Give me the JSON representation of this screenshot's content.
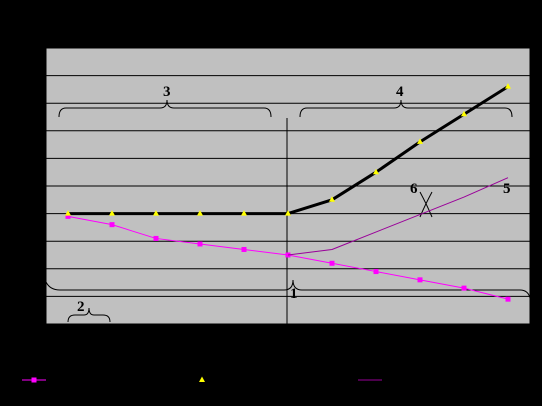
{
  "chart_data": {
    "type": "line",
    "title": "",
    "xlabel": "",
    "ylabel": "",
    "x": [
      1,
      2,
      3,
      4,
      5,
      6,
      7,
      8,
      9,
      10,
      11
    ],
    "xlim": [
      0.5,
      11.5
    ],
    "ylim": [
      0,
      10
    ],
    "grid": true,
    "legend_position": "bottom",
    "series": [
      {
        "key": "magenta-squares",
        "color": "#ff00ff",
        "marker": "square",
        "line_width": 1,
        "values": [
          3.9,
          3.6,
          3.1,
          2.9,
          2.7,
          2.5,
          2.2,
          1.9,
          1.6,
          1.3,
          0.9
        ]
      },
      {
        "key": "black-triangles",
        "color": "#000000",
        "marker_color": "#ffff00",
        "marker": "triangle",
        "line_width": 3,
        "values": [
          4.0,
          4.0,
          4.0,
          4.0,
          4.0,
          4.0,
          4.5,
          5.5,
          6.6,
          7.6,
          8.6
        ]
      },
      {
        "key": "purple-line",
        "color": "#990099",
        "marker": "none",
        "line_width": 1,
        "values": [
          null,
          null,
          null,
          null,
          null,
          2.5,
          2.7,
          null,
          null,
          4.6,
          5.3
        ]
      }
    ],
    "annotations": [
      {
        "key": "label-1",
        "text": "1"
      },
      {
        "key": "label-2",
        "text": "2"
      },
      {
        "key": "label-3",
        "text": "3"
      },
      {
        "key": "label-4",
        "text": "4"
      },
      {
        "key": "label-5",
        "text": "5"
      },
      {
        "key": "label-6",
        "text": "6"
      }
    ]
  }
}
